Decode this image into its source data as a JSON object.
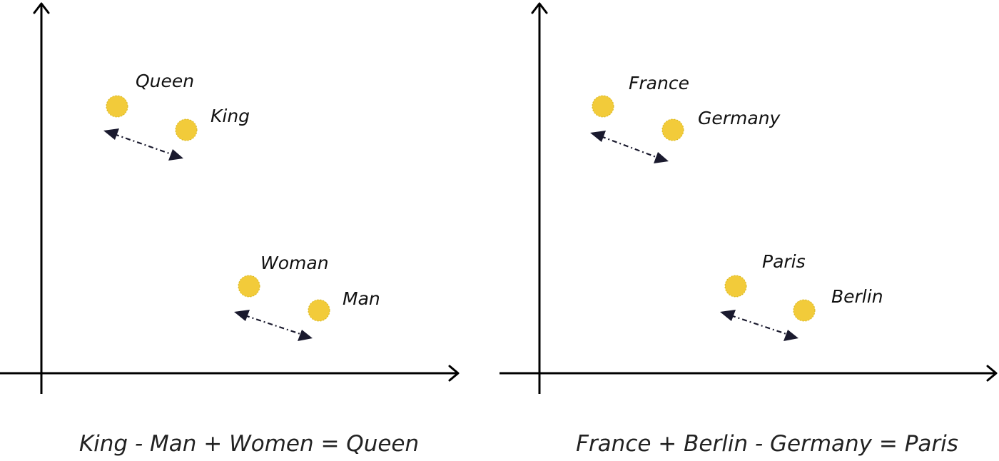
{
  "colors": {
    "point": "#f2cb3a",
    "arrow": "#1a1a2e",
    "axis": "#000000"
  },
  "panels": [
    {
      "id": "gender",
      "points": [
        {
          "word": "Queen"
        },
        {
          "word": "King"
        },
        {
          "word": "Woman"
        },
        {
          "word": "Man"
        }
      ],
      "equation": "King - Man + Women = Queen"
    },
    {
      "id": "capital",
      "points": [
        {
          "word": "France"
        },
        {
          "word": "Germany"
        },
        {
          "word": "Paris"
        },
        {
          "word": "Berlin"
        }
      ],
      "equation": "France + Berlin - Germany = Paris"
    }
  ]
}
